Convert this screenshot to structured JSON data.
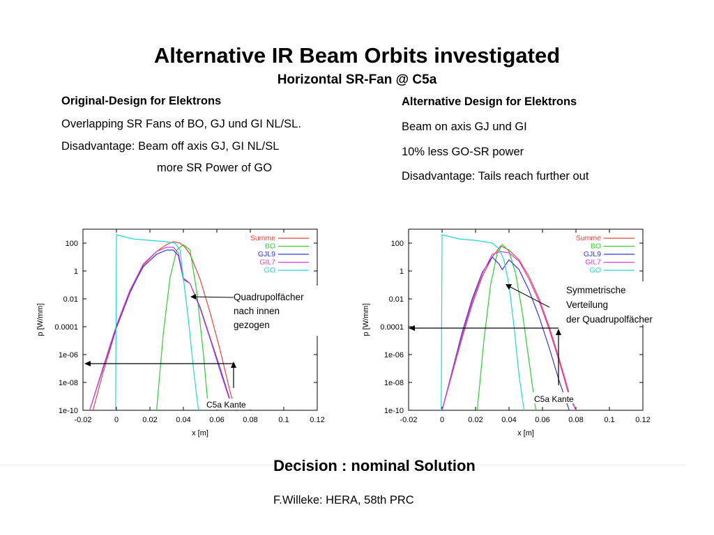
{
  "slide": {
    "title": "Alternative IR Beam Orbits investigated",
    "subtitle": "Horizontal SR-Fan @ C5a",
    "decision": "Decision : nominal Solution",
    "credit": "F.Willeke: HERA, 58th PRC"
  },
  "left": {
    "heading": "Original-Design for Elektrons",
    "line1": "Overlapping SR Fans of  BO, GJ und GI NL/SL.",
    "line2": "Disadvantage: Beam off axis GJ, GI NL/SL",
    "line3": "more SR Power of GO",
    "annotation": [
      "Quadrupolfächer",
      "nach innen",
      "gezogen"
    ],
    "edge_label": "C5a Kante"
  },
  "right": {
    "heading": "Alternative Design for Elektrons",
    "line1": "Beam on axis GJ und GI",
    "line2": "10% less GO-SR power",
    "line3": "Disadvantage: Tails reach further out",
    "annotation": [
      "Symmetrische",
      "Verteilung",
      "der Quadrupolfächer"
    ],
    "edge_label": "C5a Kante"
  },
  "chart_data": [
    {
      "type": "line",
      "xlabel": "x [m]",
      "ylabel": "p [W/mm]",
      "xlim": [
        -0.02,
        0.12
      ],
      "ylim_log10": [
        -10,
        3
      ],
      "yscale": "log",
      "x_ticks": [
        "-0.02",
        "0",
        "0.02",
        "0.04",
        "0.06",
        "0.08",
        "0.1",
        "0.12"
      ],
      "y_ticks": [
        "100",
        "1",
        "0.01",
        "0.0001",
        "1e-06",
        "1e-08",
        "1e-10"
      ],
      "legend_position": "top-right",
      "series": [
        {
          "name": "Summe",
          "color": "#e8403a",
          "x": [
            -0.014,
            -0.008,
            0.0,
            0.008,
            0.016,
            0.024,
            0.03,
            0.034,
            0.038,
            0.041,
            0.044,
            0.05,
            0.056,
            0.062,
            0.068,
            0.071
          ],
          "log10_y": [
            -10,
            -7.3,
            -4.1,
            -1.6,
            0.4,
            1.4,
            1.9,
            2.1,
            2.0,
            1.7,
            1.2,
            -0.6,
            -3.0,
            -5.7,
            -8.7,
            -10
          ]
        },
        {
          "name": "BO",
          "color": "#2ecc2e",
          "x": [
            0.024,
            0.028,
            0.032,
            0.036,
            0.04,
            0.044,
            0.048,
            0.052,
            0.055
          ],
          "log10_y": [
            -10,
            -4.5,
            -0.5,
            1.5,
            1.9,
            1.5,
            -1.5,
            -6,
            -10
          ]
        },
        {
          "name": "GJL9",
          "color": "#3535d8",
          "x": [
            -0.016,
            -0.008,
            0.0,
            0.008,
            0.016,
            0.024,
            0.03,
            0.034,
            0.037,
            0.04,
            0.044,
            0.05,
            0.056,
            0.062,
            0.068,
            0.072
          ],
          "log10_y": [
            -10,
            -7.0,
            -4.0,
            -1.5,
            0.3,
            1.2,
            1.5,
            1.5,
            1.1,
            -0.6,
            -0.9,
            -2.6,
            -4.8,
            -7.0,
            -9.3,
            -10
          ]
        },
        {
          "name": "GIL7",
          "color": "#d63dd6",
          "x": [
            -0.016,
            -0.008,
            0.0,
            0.008,
            0.016,
            0.024,
            0.03,
            0.034,
            0.037,
            0.04,
            0.044,
            0.05,
            0.056,
            0.062,
            0.068,
            0.071
          ],
          "log10_y": [
            -10,
            -6.9,
            -3.9,
            -1.4,
            0.5,
            1.4,
            1.7,
            1.7,
            1.3,
            -0.5,
            -0.9,
            -2.7,
            -4.9,
            -7.2,
            -9.4,
            -10
          ]
        },
        {
          "name": "GO",
          "color": "#22d6d6",
          "x": [
            -0.0005,
            0.0,
            0.01,
            0.02,
            0.03,
            0.035,
            0.038,
            0.04,
            0.043,
            0.046,
            0.049
          ],
          "log10_y": [
            -10,
            2.6,
            2.3,
            2.2,
            2.1,
            2.0,
            1.5,
            -0.5,
            -3.5,
            -7.0,
            -10
          ]
        }
      ]
    },
    {
      "type": "line",
      "xlabel": "x [m]",
      "ylabel": "p [W/mm]",
      "xlim": [
        -0.02,
        0.12
      ],
      "ylim_log10": [
        -10,
        3
      ],
      "yscale": "log",
      "x_ticks": [
        "-0.02",
        "0",
        "0.02",
        "0.04",
        "0.06",
        "0.08",
        "0.1",
        "0.12"
      ],
      "y_ticks": [
        "100",
        "1",
        "0.01",
        "0.0001",
        "1e-06",
        "1e-08",
        "1e-10"
      ],
      "legend_position": "top-right",
      "series": [
        {
          "name": "Summe",
          "color": "#e8403a",
          "x": [
            0.0,
            0.006,
            0.012,
            0.018,
            0.024,
            0.03,
            0.035,
            0.04,
            0.046,
            0.052,
            0.058,
            0.064,
            0.07,
            0.076,
            0.08
          ],
          "log10_y": [
            -10,
            -7.4,
            -4.8,
            -2.4,
            -0.4,
            1.0,
            1.8,
            1.5,
            0.8,
            -0.4,
            -2.0,
            -4.0,
            -6.3,
            -8.8,
            -10
          ]
        },
        {
          "name": "BO",
          "color": "#2ecc2e",
          "x": [
            0.021,
            0.025,
            0.029,
            0.033,
            0.036,
            0.04,
            0.044,
            0.048,
            0.052,
            0.056
          ],
          "log10_y": [
            -10,
            -5.0,
            -1.0,
            1.3,
            1.9,
            1.4,
            -0.2,
            -3.0,
            -6.5,
            -10
          ]
        },
        {
          "name": "GJL9",
          "color": "#3535d8",
          "x": [
            0.0,
            0.006,
            0.012,
            0.018,
            0.024,
            0.03,
            0.034,
            0.036,
            0.04,
            0.046,
            0.052,
            0.058,
            0.064,
            0.07,
            0.076,
            0.079
          ],
          "log10_y": [
            -10,
            -7.2,
            -4.4,
            -2.0,
            -0.1,
            1.0,
            0.5,
            0.1,
            0.8,
            0.1,
            -1.4,
            -3.3,
            -5.5,
            -7.9,
            -10,
            -10
          ]
        },
        {
          "name": "GIL7",
          "color": "#d63dd6",
          "x": [
            0.0,
            0.006,
            0.012,
            0.018,
            0.024,
            0.03,
            0.035,
            0.04,
            0.046,
            0.052,
            0.058,
            0.064,
            0.07,
            0.076,
            0.08
          ],
          "log10_y": [
            -10,
            -7.3,
            -4.6,
            -2.2,
            -0.2,
            1.2,
            1.4,
            1.3,
            0.7,
            -0.6,
            -2.2,
            -4.2,
            -6.5,
            -9.0,
            -10
          ]
        },
        {
          "name": "GO",
          "color": "#22d6d6",
          "x": [
            -0.0005,
            0.0,
            0.01,
            0.02,
            0.03,
            0.034,
            0.037,
            0.04,
            0.043,
            0.046,
            0.049
          ],
          "log10_y": [
            -10,
            2.6,
            2.3,
            2.2,
            2.0,
            1.6,
            0.8,
            -1.0,
            -4.0,
            -7.5,
            -10
          ]
        }
      ]
    }
  ]
}
